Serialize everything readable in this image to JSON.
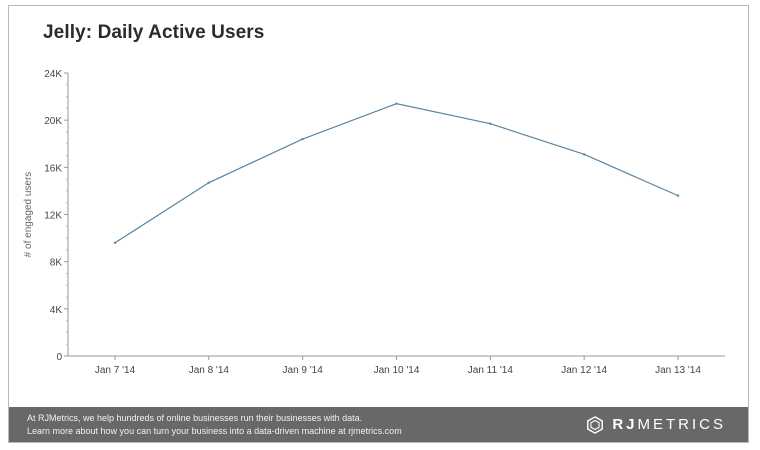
{
  "chart_data": {
    "type": "line",
    "title": "Jelly: Daily Active Users",
    "xlabel": "",
    "ylabel": "# of engaged users",
    "ylim": [
      0,
      24000
    ],
    "yticks": [
      0,
      4000,
      8000,
      12000,
      16000,
      20000,
      24000
    ],
    "ytick_labels": [
      "0",
      "4K",
      "8K",
      "12K",
      "16K",
      "20K",
      "24K"
    ],
    "categories": [
      "Jan 7 '14",
      "Jan 8 '14",
      "Jan 9 '14",
      "Jan 10 '14",
      "Jan 11 '14",
      "Jan 12 '14",
      "Jan 13 '14"
    ],
    "series": [
      {
        "name": "Daily Active Users",
        "values": [
          9600,
          14700,
          18400,
          21400,
          19700,
          17100,
          13600
        ]
      }
    ],
    "grid": false,
    "line_color": "#5b86a0"
  },
  "footer": {
    "line1": "At RJMetrics, we help hundreds of online businesses run their businesses with data.",
    "line2": "Learn more about how you can turn your business into a data-driven machine at rjmetrics.com",
    "brand_bold": "RJ",
    "brand_rest": "METRICS"
  }
}
